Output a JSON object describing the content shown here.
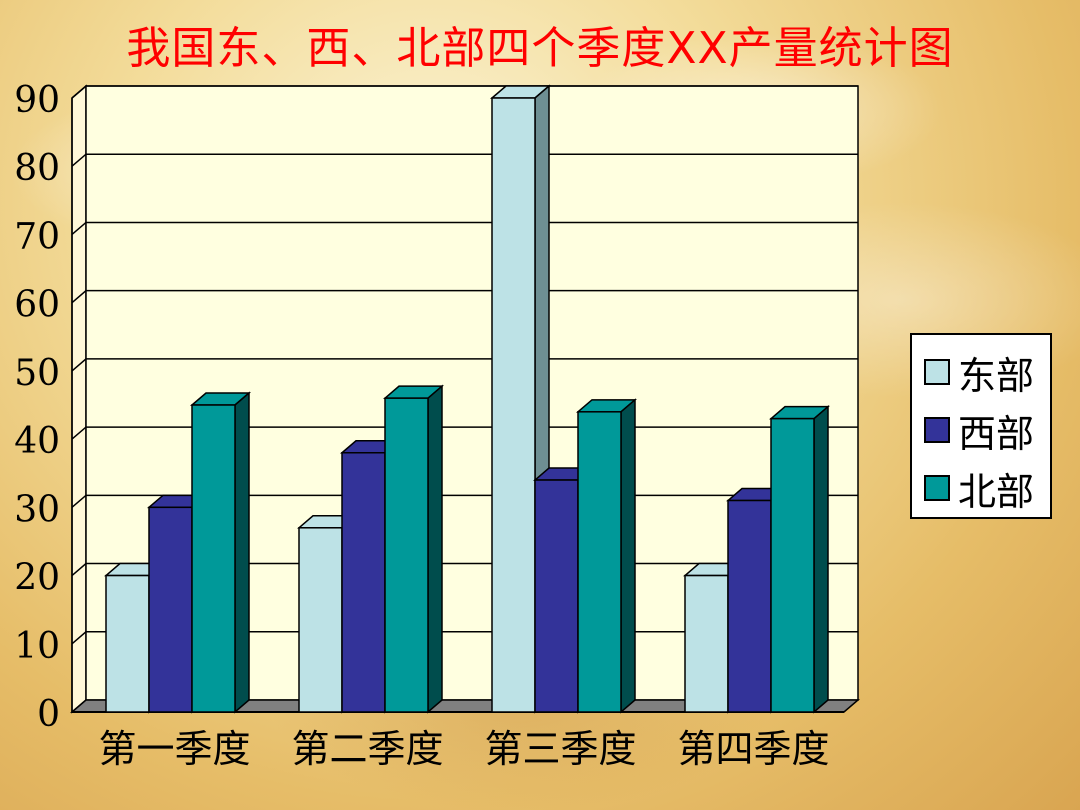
{
  "title": "我国东、西、北部四个季度XX产量统计图",
  "chart_data": {
    "type": "bar",
    "categories": [
      "第一季度",
      "第二季度",
      "第三季度",
      "第四季度"
    ],
    "series": [
      {
        "name": "东部",
        "values": [
          20,
          27,
          90,
          20
        ],
        "color": "#bde2e6",
        "side": "#6e8f93"
      },
      {
        "name": "西部",
        "values": [
          30,
          38,
          34,
          31
        ],
        "color": "#333399",
        "side": "#1d1d5e"
      },
      {
        "name": "北部",
        "values": [
          45,
          46,
          44,
          43
        ],
        "color": "#009999",
        "side": "#004d4d"
      }
    ],
    "ylim": [
      0,
      90
    ],
    "yticks": [
      "0",
      "10",
      "20",
      "30",
      "40",
      "50",
      "60",
      "70",
      "80",
      "90"
    ],
    "grid": true,
    "legend_position": "right"
  }
}
